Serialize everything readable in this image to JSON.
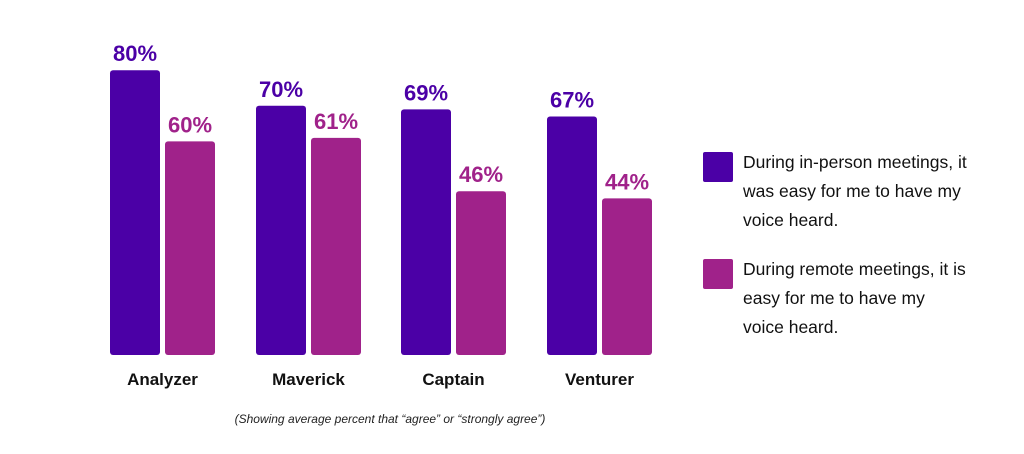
{
  "chart_data": {
    "type": "bar",
    "categories": [
      "Analyzer",
      "Maverick",
      "Captain",
      "Venturer"
    ],
    "series": [
      {
        "name": "During in-person meetings, it was easy for me to have my voice heard.",
        "values": [
          80,
          70,
          69,
          67
        ],
        "labels": [
          "80%",
          "70%",
          "69%",
          "67%"
        ],
        "color": "#4b00a6"
      },
      {
        "name": "During remote meetings, it is easy for me to have my voice heard.",
        "values": [
          60,
          61,
          46,
          44
        ],
        "labels": [
          "60%",
          "61%",
          "46%",
          "44%"
        ],
        "color": "#a0228a"
      }
    ],
    "ylim": [
      0,
      100
    ],
    "grid": false,
    "legend_position": "right",
    "caption": "(Showing average percent that “agree” or “strongly agree”)"
  }
}
